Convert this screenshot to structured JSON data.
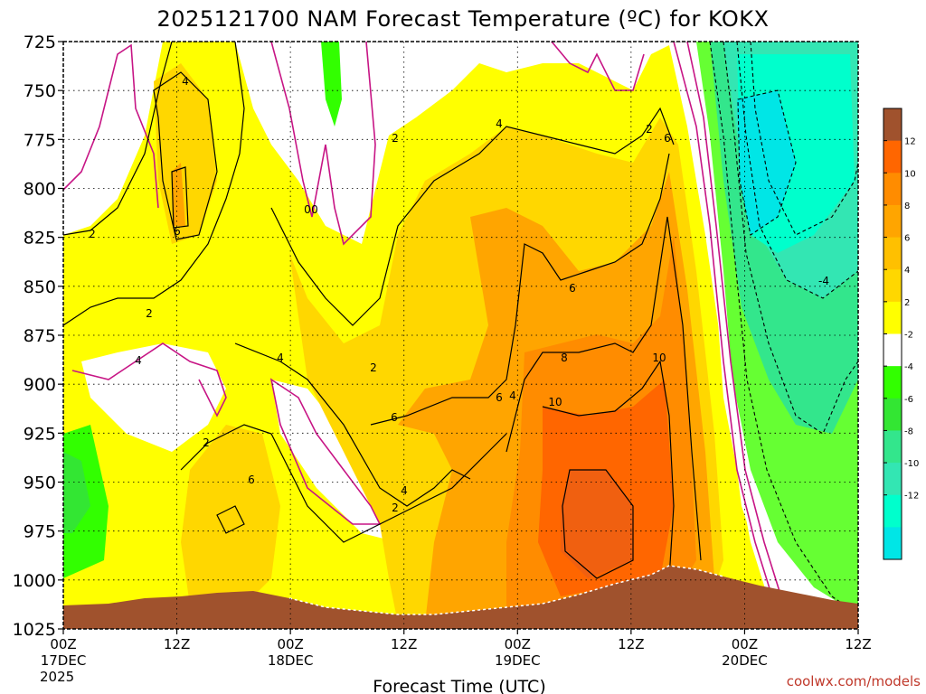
{
  "title": "2025121700 NAM Forecast Temperature (ºC) for KOKX",
  "xlabel": "Forecast Time (UTC)",
  "credit": "coolwx.com/models",
  "chart_data": {
    "type": "contour",
    "y_axis": {
      "label": "",
      "unit": "hPa",
      "ticks": [
        "725",
        "750",
        "775",
        "800",
        "825",
        "850",
        "875",
        "900",
        "925",
        "950",
        "975",
        "1000",
        "1025"
      ],
      "range": [
        725,
        1025
      ],
      "inverted": true
    },
    "x_axis": {
      "ticks": [
        {
          "label": "00Z",
          "sub": "17DEC",
          "sub2": "2025"
        },
        {
          "label": "12Z",
          "sub": "",
          "sub2": ""
        },
        {
          "label": "00Z",
          "sub": "18DEC",
          "sub2": ""
        },
        {
          "label": "12Z",
          "sub": "",
          "sub2": ""
        },
        {
          "label": "00Z",
          "sub": "19DEC",
          "sub2": ""
        },
        {
          "label": "12Z",
          "sub": "",
          "sub2": ""
        },
        {
          "label": "00Z",
          "sub": "20DEC",
          "sub2": ""
        },
        {
          "label": "12Z",
          "sub": "",
          "sub2": ""
        }
      ],
      "range_hours": [
        0,
        84
      ]
    },
    "colorbar": {
      "ticks": [
        "12",
        "10",
        "8",
        "6",
        "4",
        "2",
        "-2",
        "-4",
        "-6",
        "-8",
        "-10",
        "-12"
      ],
      "colors": [
        "#a0522d",
        "#ff6600",
        "#ff8c00",
        "#ffa500",
        "#ffc000",
        "#ffd700",
        "#ffff00",
        "#ffffff",
        "#32ff00",
        "#33e633",
        "#33e68c",
        "#33e6b3",
        "#00ffcc",
        "#00e6e6"
      ]
    },
    "contour_labels": [
      "4",
      "6",
      "2",
      "0",
      "2",
      "4",
      "4",
      "2",
      "6",
      "4",
      "2",
      "6",
      "4",
      "6",
      "8",
      "10",
      "10",
      "6",
      "2",
      "-4",
      "6",
      "2",
      "0",
      "4",
      "2"
    ],
    "grid": true
  }
}
